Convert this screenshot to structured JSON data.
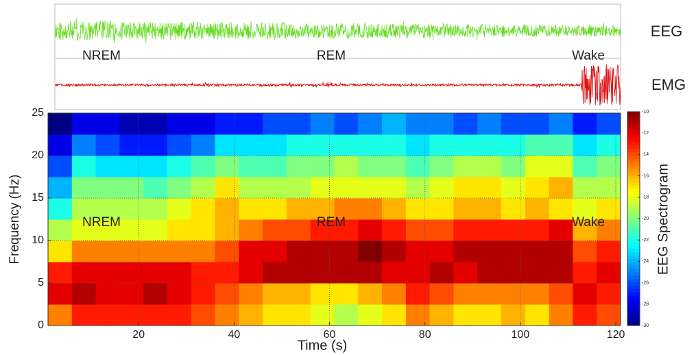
{
  "traces": {
    "labels": [
      "EEG",
      "EMG"
    ],
    "colors": [
      "#66dd22",
      "#dd1111"
    ]
  },
  "stages": [
    "NREM",
    "REM",
    "Wake"
  ],
  "chart_data": {
    "type": "heatmap",
    "xlabel": "Time (s)",
    "ylabel": "Frequency (Hz)",
    "colorbar_label": "EEG Spectrogram",
    "xbins": [
      1,
      6,
      11,
      16,
      21,
      26,
      31,
      36,
      41,
      46,
      51,
      56,
      61,
      66,
      71,
      76,
      81,
      86,
      91,
      96,
      101,
      106,
      111,
      116,
      121
    ],
    "ybins": [
      0,
      2.5,
      5,
      7.5,
      10,
      12.5,
      15,
      17.5,
      20,
      22.5,
      25
    ],
    "values": [
      [
        -15,
        -13,
        -13,
        -13,
        -13,
        -13,
        -14,
        -15,
        -16,
        -17,
        -17,
        -18,
        -19,
        -18,
        -17,
        -15,
        -16,
        -17,
        -17,
        -16,
        -17,
        -15,
        -13,
        -14
      ],
      [
        -12,
        -11,
        -12,
        -12,
        -11,
        -12,
        -13,
        -14,
        -15,
        -16,
        -16,
        -17,
        -17,
        -16,
        -15,
        -13,
        -14,
        -15,
        -15,
        -15,
        -15,
        -14,
        -12,
        -13
      ],
      [
        -13,
        -12,
        -12,
        -12,
        -12,
        -12,
        -13,
        -13,
        -12,
        -11,
        -11,
        -11,
        -11,
        -11,
        -12,
        -12,
        -11,
        -12,
        -11,
        -11,
        -11,
        -11,
        -13,
        -12
      ],
      [
        -17,
        -15,
        -15,
        -15,
        -15,
        -15,
        -15,
        -14,
        -12,
        -12,
        -11,
        -11,
        -11,
        -10,
        -11,
        -12,
        -12,
        -11,
        -11,
        -11,
        -11,
        -11,
        -14,
        -13
      ],
      [
        -19,
        -18,
        -18,
        -18,
        -18,
        -17,
        -17,
        -16,
        -15,
        -14,
        -14,
        -13,
        -13,
        -12,
        -13,
        -14,
        -14,
        -13,
        -13,
        -13,
        -13,
        -12,
        -16,
        -15
      ],
      [
        -22,
        -19,
        -19,
        -19,
        -19,
        -18,
        -17,
        -16,
        -17,
        -17,
        -16,
        -16,
        -15,
        -15,
        -16,
        -17,
        -17,
        -16,
        -16,
        -17,
        -16,
        -17,
        -18,
        -17
      ],
      [
        -24,
        -20,
        -20,
        -20,
        -21,
        -20,
        -19,
        -17,
        -19,
        -19,
        -19,
        -18,
        -18,
        -18,
        -18,
        -19,
        -18,
        -17,
        -17,
        -18,
        -17,
        -16,
        -19,
        -19
      ],
      [
        -26,
        -22,
        -23,
        -23,
        -23,
        -22,
        -21,
        -20,
        -21,
        -21,
        -20,
        -20,
        -19,
        -20,
        -20,
        -21,
        -20,
        -19,
        -19,
        -20,
        -18,
        -18,
        -21,
        -20
      ],
      [
        -28,
        -25,
        -26,
        -27,
        -27,
        -26,
        -25,
        -23,
        -23,
        -23,
        -22,
        -22,
        -22,
        -22,
        -22,
        -23,
        -22,
        -22,
        -22,
        -22,
        -21,
        -21,
        -23,
        -22
      ],
      [
        -30,
        -28,
        -28,
        -29,
        -29,
        -28,
        -28,
        -27,
        -27,
        -26,
        -26,
        -25,
        -26,
        -25,
        -24,
        -25,
        -25,
        -26,
        -25,
        -26,
        -26,
        -25,
        -27,
        -26
      ]
    ],
    "xlim": [
      1,
      121
    ],
    "ylim": [
      0,
      25
    ],
    "xticks": [
      20,
      40,
      60,
      80,
      100,
      120
    ],
    "yticks": [
      0,
      5,
      10,
      15,
      20,
      25
    ],
    "clim": [
      -30,
      -10
    ],
    "cticks": [
      -30,
      -28,
      -26,
      -24,
      -22,
      -20,
      -18,
      -16,
      -14,
      -12,
      -10
    ],
    "colormap": "jet",
    "grid": true
  }
}
